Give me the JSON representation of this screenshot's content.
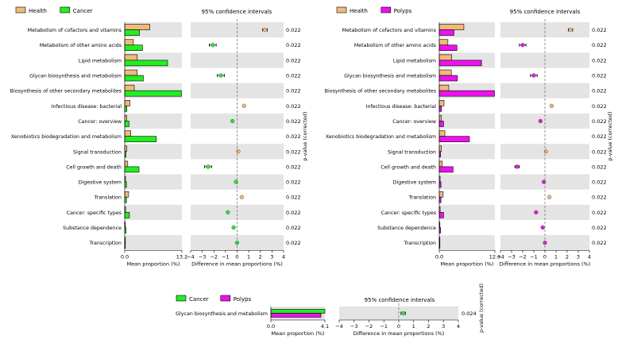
{
  "colors": {
    "health": "#f2b97c",
    "cancer": "#22ee22",
    "polyps": "#ee11ee",
    "row_shade": "#e4e4e4",
    "zero_line": "#666666"
  },
  "chart_data": [
    {
      "type": "extended_error_bar",
      "name": "health-vs-cancer",
      "legend": [
        {
          "label": "Health",
          "color_key": "health"
        },
        {
          "label": "Cancer",
          "color_key": "cancer"
        }
      ],
      "ci_title": "95% confidence intervals",
      "bar_xlabel": "Mean proportion (%)",
      "diff_xlabel": "Difference in mean proportions (%)",
      "pvalue_label": "p-value (corrected)",
      "bar_max": 13.2,
      "bar_ticks": [
        "0.0",
        "13.2"
      ],
      "diff_range": [
        -4,
        4
      ],
      "diff_ticks": [
        "−4",
        "−3",
        "−2",
        "−1",
        "0",
        "1",
        "2",
        "3",
        "4"
      ],
      "rows": [
        {
          "label": "Metabolism of cofactors and vitamins",
          "a": 5.8,
          "b": 3.4,
          "diff": 2.4,
          "lo": 2.2,
          "hi": 2.6,
          "p": "0.022"
        },
        {
          "label": "Metabolism of other amino acids",
          "a": 2.0,
          "b": 4.1,
          "diff": -2.1,
          "lo": -2.4,
          "hi": -1.8,
          "p": "0.022"
        },
        {
          "label": "Lipid metabolism",
          "a": 2.9,
          "b": 9.9,
          "diff": 0.0,
          "lo": 0.0,
          "hi": 0.0,
          "p": "0.022",
          "no_marker": true
        },
        {
          "label": "Glycan biosynthesis and metabolism",
          "a": 2.9,
          "b": 4.3,
          "diff": -1.4,
          "lo": -1.7,
          "hi": -1.1,
          "p": "0.022"
        },
        {
          "label": "Biosynthesis of other secondary metabolites",
          "a": 2.2,
          "b": 13.1,
          "diff": 0.0,
          "lo": 0.0,
          "hi": 0.0,
          "p": "0.022",
          "no_marker": true
        },
        {
          "label": "Infectious disease: bacterial",
          "a": 1.2,
          "b": 0.5,
          "diff": 0.6,
          "lo": 0.55,
          "hi": 0.65,
          "p": "0.022"
        },
        {
          "label": "Cancer: overview",
          "a": 0.5,
          "b": 1.0,
          "diff": -0.4,
          "lo": -0.45,
          "hi": -0.35,
          "p": "0.022"
        },
        {
          "label": "Xenobiotics biodegradation and metabolism",
          "a": 1.4,
          "b": 7.3,
          "diff": 0.0,
          "lo": 0.0,
          "hi": 0.0,
          "p": "0.022",
          "no_marker": true
        },
        {
          "label": "Signal transduction",
          "a": 0.5,
          "b": 0.3,
          "diff": 0.1,
          "lo": 0.05,
          "hi": 0.15,
          "p": "0.022"
        },
        {
          "label": "Cell growth and death",
          "a": 0.7,
          "b": 3.3,
          "diff": -2.5,
          "lo": -2.8,
          "hi": -2.2,
          "p": "0.022"
        },
        {
          "label": "Digestive system",
          "a": 0.2,
          "b": 0.4,
          "diff": -0.1,
          "lo": -0.15,
          "hi": -0.05,
          "p": "0.022"
        },
        {
          "label": "Translation",
          "a": 0.9,
          "b": 0.4,
          "diff": 0.4,
          "lo": 0.35,
          "hi": 0.45,
          "p": "0.022"
        },
        {
          "label": "Cancer: specific types",
          "a": 0.2,
          "b": 1.1,
          "diff": -0.8,
          "lo": -0.85,
          "hi": -0.75,
          "p": "0.022"
        },
        {
          "label": "Substance dependence",
          "a": 0.1,
          "b": 0.3,
          "diff": -0.3,
          "lo": -0.35,
          "hi": -0.25,
          "p": "0.022"
        },
        {
          "label": "Transcription",
          "a": 0.1,
          "b": 0.1,
          "diff": 0.0,
          "lo": -0.05,
          "hi": 0.05,
          "p": "0.022"
        }
      ]
    },
    {
      "type": "extended_error_bar",
      "name": "health-vs-polyps",
      "legend": [
        {
          "label": "Health",
          "color_key": "health"
        },
        {
          "label": "Polyps",
          "color_key": "polyps"
        }
      ],
      "ci_title": "95% confidence intervals",
      "bar_xlabel": "Mean proportion (%)",
      "diff_xlabel": "Difference in mean proportions (%)",
      "pvalue_label": "p-value (corrected)",
      "bar_max": 12.9,
      "bar_ticks": [
        "0.0",
        "12.9"
      ],
      "diff_range": [
        -4,
        4
      ],
      "diff_ticks": [
        "−4",
        "−3",
        "−2",
        "−1",
        "0",
        "1",
        "2",
        "3",
        "4"
      ],
      "rows": [
        {
          "label": "Metabolism of cofactors and vitamins",
          "a": 5.7,
          "b": 3.4,
          "diff": 2.3,
          "lo": 2.1,
          "hi": 2.5,
          "p": "0.022"
        },
        {
          "label": "Metabolism of other amino acids",
          "a": 2.0,
          "b": 4.1,
          "diff": -2.0,
          "lo": -2.3,
          "hi": -1.7,
          "p": "0.022"
        },
        {
          "label": "Lipid metabolism",
          "a": 2.9,
          "b": 9.8,
          "diff": 0.0,
          "lo": 0.0,
          "hi": 0.0,
          "p": "0.022",
          "no_marker": true
        },
        {
          "label": "Glycan biosynthesis and metabolism",
          "a": 2.8,
          "b": 4.2,
          "diff": -1.0,
          "lo": -1.3,
          "hi": -0.7,
          "p": "0.022"
        },
        {
          "label": "Biosynthesis of other secondary metabolites",
          "a": 2.2,
          "b": 12.8,
          "diff": 0.0,
          "lo": 0.0,
          "hi": 0.0,
          "p": "0.022",
          "no_marker": true
        },
        {
          "label": "Infectious disease: bacterial",
          "a": 1.1,
          "b": 0.5,
          "diff": 0.6,
          "lo": 0.55,
          "hi": 0.65,
          "p": "0.022"
        },
        {
          "label": "Cancer: overview",
          "a": 0.5,
          "b": 1.0,
          "diff": -0.4,
          "lo": -0.45,
          "hi": -0.35,
          "p": "0.022"
        },
        {
          "label": "Xenobiotics biodegradation and metabolism",
          "a": 1.3,
          "b": 7.0,
          "diff": 0.0,
          "lo": 0.0,
          "hi": 0.0,
          "p": "0.022",
          "no_marker": true
        },
        {
          "label": "Signal transduction",
          "a": 0.5,
          "b": 0.3,
          "diff": 0.1,
          "lo": 0.05,
          "hi": 0.15,
          "p": "0.022"
        },
        {
          "label": "Cell growth and death",
          "a": 0.7,
          "b": 3.2,
          "diff": -2.5,
          "lo": -2.7,
          "hi": -2.3,
          "p": "0.022"
        },
        {
          "label": "Digestive system",
          "a": 0.2,
          "b": 0.4,
          "diff": -0.1,
          "lo": -0.15,
          "hi": -0.05,
          "p": "0.022"
        },
        {
          "label": "Translation",
          "a": 0.9,
          "b": 0.4,
          "diff": 0.4,
          "lo": 0.35,
          "hi": 0.45,
          "p": "0.022"
        },
        {
          "label": "Cancer: specific types",
          "a": 0.2,
          "b": 1.0,
          "diff": -0.8,
          "lo": -0.9,
          "hi": -0.7,
          "p": "0.022"
        },
        {
          "label": "Substance dependence",
          "a": 0.1,
          "b": 0.3,
          "diff": -0.2,
          "lo": -0.25,
          "hi": -0.15,
          "p": "0.022"
        },
        {
          "label": "Transcription",
          "a": 0.1,
          "b": 0.1,
          "diff": 0.0,
          "lo": -0.05,
          "hi": 0.05,
          "p": "0.022"
        }
      ]
    },
    {
      "type": "extended_error_bar",
      "name": "cancer-vs-polyps",
      "legend": [
        {
          "label": "Cancer",
          "color_key": "cancer"
        },
        {
          "label": "Polyps",
          "color_key": "polyps"
        }
      ],
      "ci_title": "95% confidence intervals",
      "bar_xlabel": "Mean proportion (%)",
      "diff_xlabel": "Difference in mean proportions (%)",
      "pvalue_label": "p-value (corrected)",
      "bar_max": 4.1,
      "bar_ticks": [
        "0.0",
        "4.1"
      ],
      "diff_range": [
        -4,
        4
      ],
      "diff_ticks": [
        "−4",
        "−3",
        "−2",
        "−1",
        "0",
        "1",
        "2",
        "3",
        "4"
      ],
      "rows": [
        {
          "label": "Glycan biosynthesis and metabolism",
          "a": 4.1,
          "b": 3.8,
          "diff": 0.3,
          "lo": 0.15,
          "hi": 0.45,
          "p": "0.024"
        }
      ]
    }
  ]
}
